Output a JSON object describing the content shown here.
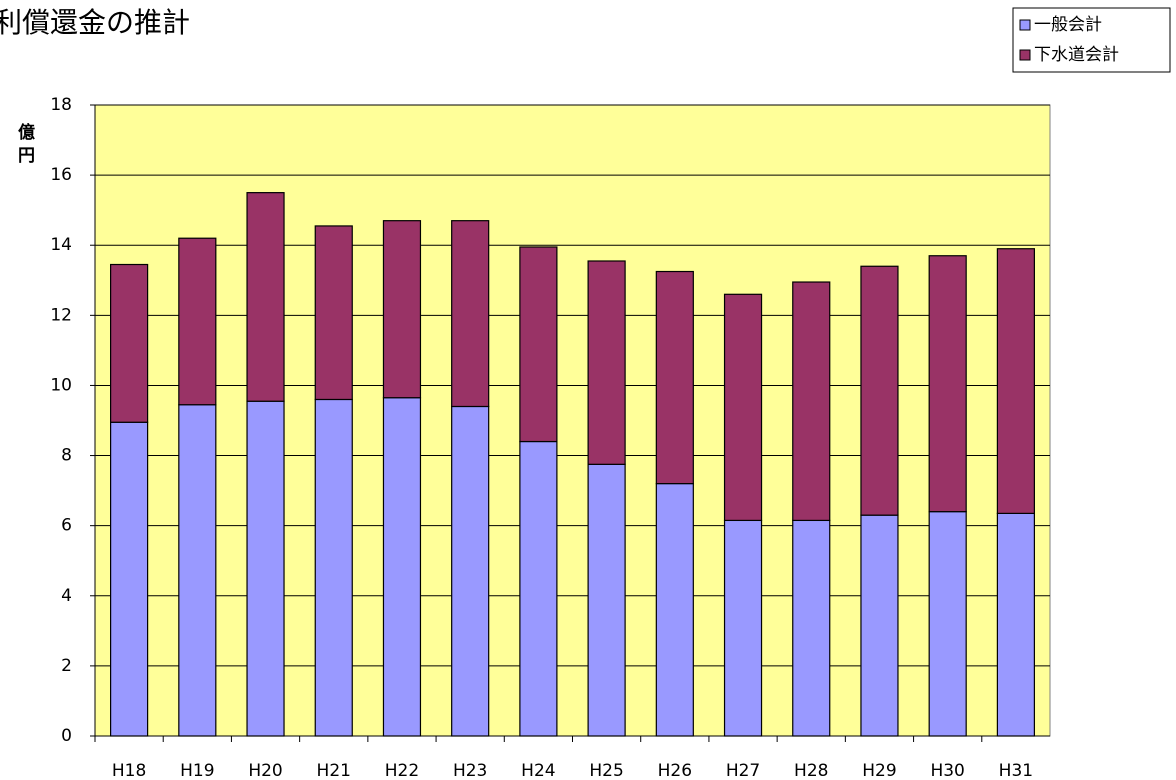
{
  "chart_data": {
    "type": "stacked-bar",
    "title": "利償還金の推計",
    "y_label": "億円",
    "categories": [
      "H18",
      "H19",
      "H20",
      "H21",
      "H22",
      "H23",
      "H24",
      "H25",
      "H26",
      "H27",
      "H28",
      "H29",
      "H30",
      "H31"
    ],
    "series": [
      {
        "name": "一般会計",
        "color": "#9999ff",
        "values": [
          8.95,
          9.45,
          9.55,
          9.6,
          9.65,
          9.4,
          8.4,
          7.75,
          7.2,
          6.15,
          6.15,
          6.3,
          6.4,
          6.35
        ]
      },
      {
        "name": "下水道会計",
        "color": "#993366",
        "values": [
          4.5,
          4.75,
          5.95,
          4.95,
          5.05,
          5.3,
          5.55,
          5.8,
          6.05,
          6.45,
          6.8,
          7.1,
          7.3,
          7.55
        ]
      }
    ],
    "ylim": [
      0,
      18
    ],
    "yticks": [
      0,
      2,
      4,
      6,
      8,
      10,
      12,
      14,
      16,
      18
    ],
    "grid": true,
    "legend": "top-right",
    "plot_background": "#ffff99"
  }
}
